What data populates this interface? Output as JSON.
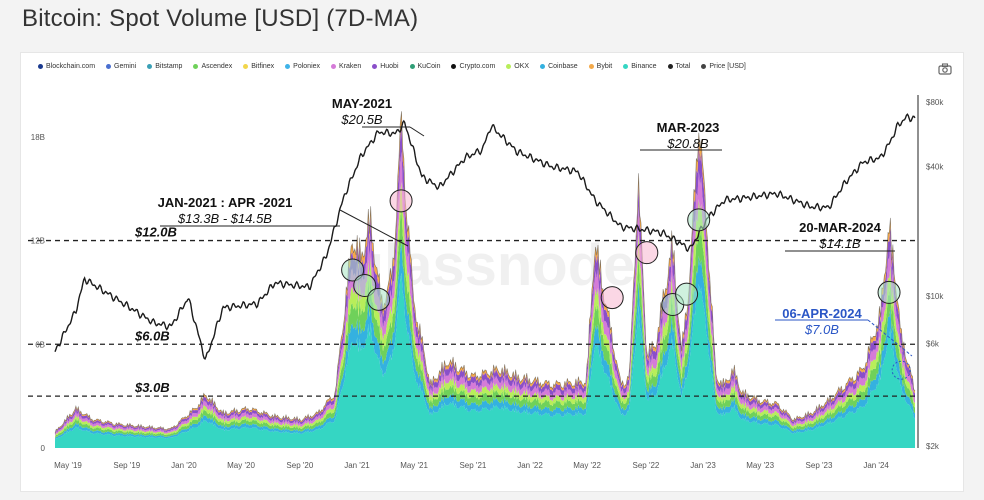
{
  "title": "Bitcoin: Spot Volume [USD] (7D-MA)",
  "watermark": "glassnode",
  "legend": [
    {
      "name": "Blockchain.com",
      "color": "#1a3a8f"
    },
    {
      "name": "Gemini",
      "color": "#4a6fd0"
    },
    {
      "name": "Bitstamp",
      "color": "#3aa0b6"
    },
    {
      "name": "Ascendex",
      "color": "#6fd15a"
    },
    {
      "name": "Bitfinex",
      "color": "#f2d64b"
    },
    {
      "name": "Poloniex",
      "color": "#3fb3e8"
    },
    {
      "name": "Kraken",
      "color": "#d57bd8"
    },
    {
      "name": "Huobi",
      "color": "#8a4fc9"
    },
    {
      "name": "KuCoin",
      "color": "#2f9e76"
    },
    {
      "name": "Crypto.com",
      "color": "#111111"
    },
    {
      "name": "OKX",
      "color": "#b8ee5a"
    },
    {
      "name": "Coinbase",
      "color": "#34b1e0"
    },
    {
      "name": "Bybit",
      "color": "#f3a94a"
    },
    {
      "name": "Binance",
      "color": "#35d6c3"
    },
    {
      "name": "Total",
      "color": "#222222"
    },
    {
      "name": "Price [USD]",
      "color": "#444444"
    }
  ],
  "chart_data": {
    "type": "area",
    "title": "Bitcoin: Spot Volume [USD] (7D-MA)",
    "x_ticks": [
      "May '19",
      "Sep '19",
      "Jan '20",
      "May '20",
      "Sep '20",
      "Jan '21",
      "May '21",
      "Sep '21",
      "Jan '22",
      "May '22",
      "Sep '22",
      "Jan '23",
      "May '23",
      "Sep '23",
      "Jan '24"
    ],
    "y_left_ticks": [
      "0",
      "6B",
      "12B",
      "18B"
    ],
    "y_left_range": [
      0,
      21
    ],
    "y_right_ticks": [
      "$2k",
      "$6k",
      "$10k",
      "$40k",
      "$80k"
    ],
    "y_right_scale": "log",
    "volume_series": {
      "name": "Total",
      "x": [
        2019.33,
        2019.45,
        2019.55,
        2019.7,
        2019.9,
        2020.0,
        2020.15,
        2020.2,
        2020.3,
        2020.45,
        2020.6,
        2020.75,
        2020.85,
        2020.95,
        2021.0,
        2021.05,
        2021.1,
        2021.15,
        2021.22,
        2021.28,
        2021.33,
        2021.4,
        2021.5,
        2021.6,
        2021.75,
        2021.9,
        2022.0,
        2022.2,
        2022.4,
        2022.45,
        2022.55,
        2022.6,
        2022.65,
        2022.7,
        2022.75,
        2022.8,
        2022.9,
        2022.95,
        2023.0,
        2023.05,
        2023.1,
        2023.15,
        2023.2,
        2023.25,
        2023.3,
        2023.4,
        2023.5,
        2023.6,
        2023.7,
        2023.8,
        2023.9,
        2024.0,
        2024.1,
        2024.15,
        2024.2,
        2024.22,
        2024.26,
        2024.3
      ],
      "values": [
        1.0,
        2.5,
        1.8,
        1.5,
        1.3,
        1.2,
        2.6,
        3.4,
        2.2,
        2.5,
        2.0,
        1.8,
        2.2,
        3.5,
        8.5,
        13.3,
        12.0,
        14.5,
        9.0,
        11.0,
        20.5,
        9.5,
        4.0,
        5.5,
        4.5,
        5.0,
        4.5,
        4.0,
        4.2,
        13.0,
        7.0,
        4.0,
        4.5,
        17.0,
        6.0,
        6.5,
        13.0,
        6.0,
        11.0,
        20.8,
        13.5,
        4.5,
        4.0,
        5.0,
        3.5,
        3.0,
        2.8,
        1.8,
        2.2,
        3.0,
        4.0,
        5.0,
        8.5,
        14.1,
        9.5,
        7.0,
        5.5,
        3.5
      ]
    },
    "price_series": {
      "name": "Price [USD]",
      "x": [
        2019.33,
        2019.45,
        2019.5,
        2019.7,
        2019.9,
        2020.0,
        2020.1,
        2020.2,
        2020.3,
        2020.5,
        2020.6,
        2020.8,
        2020.9,
        2021.0,
        2021.1,
        2021.2,
        2021.3,
        2021.35,
        2021.45,
        2021.55,
        2021.7,
        2021.8,
        2021.85,
        2022.0,
        2022.2,
        2022.35,
        2022.45,
        2022.6,
        2022.8,
        2022.85,
        2023.0,
        2023.1,
        2023.2,
        2023.3,
        2023.5,
        2023.7,
        2023.8,
        2023.9,
        2024.0,
        2024.1,
        2024.15,
        2024.2,
        2024.25,
        2024.3
      ],
      "values": [
        5500,
        8500,
        12000,
        9500,
        7500,
        7200,
        9800,
        5000,
        8800,
        9200,
        11500,
        11000,
        15500,
        29000,
        45000,
        58000,
        57000,
        64000,
        36000,
        32000,
        44000,
        48000,
        62000,
        47000,
        40000,
        38000,
        28000,
        21000,
        20000,
        19500,
        16500,
        23000,
        28000,
        28500,
        30000,
        26000,
        25800,
        34000,
        42000,
        44000,
        51000,
        62000,
        68000,
        67000
      ]
    },
    "reference_lines": [
      "$12.0B",
      "$6.0B",
      "$3.0B"
    ],
    "annotations": [
      {
        "label": "MAY-2021",
        "value": "$20.5B"
      },
      {
        "label": "JAN-2021 : APR -2021",
        "value": "$13.3B  - $14.5B"
      },
      {
        "label": "MAR-2023",
        "value": "$20.8B"
      },
      {
        "label": "20-MAR-2024",
        "value": "$14.1B"
      },
      {
        "label": "06-APR-2024",
        "value": "$7.0B"
      }
    ],
    "stack_colors": [
      "#35d6c3",
      "#34b1e0",
      "#6fd15a",
      "#b8ee5a",
      "#d57bd8",
      "#8a4fc9",
      "#f3a94a",
      "#222222"
    ],
    "stack_shares": [
      0.52,
      0.09,
      0.1,
      0.08,
      0.09,
      0.08,
      0.04
    ]
  }
}
